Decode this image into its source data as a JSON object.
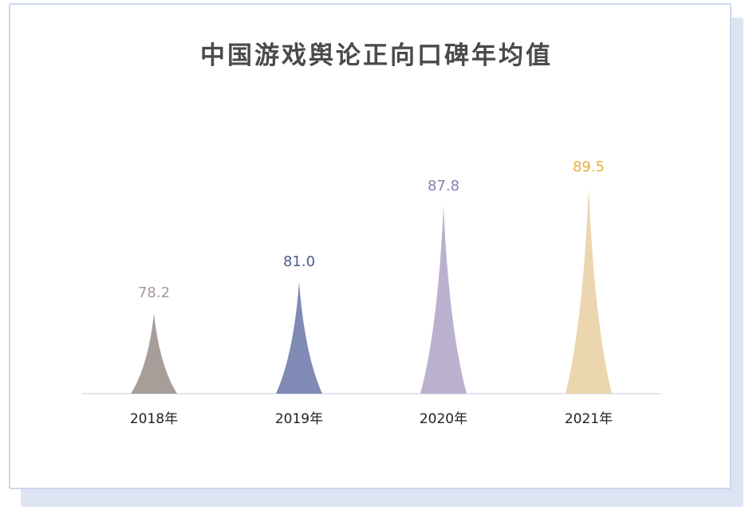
{
  "chart_data": {
    "type": "bar",
    "title": "中国游戏舆论正向口碑年均值",
    "categories": [
      "2018年",
      "2019年",
      "2020年",
      "2021年"
    ],
    "values": [
      78.2,
      81.0,
      87.8,
      89.5
    ],
    "value_labels": [
      "78.2",
      "81.0",
      "87.8",
      "89.5"
    ],
    "colors": [
      "#a79e99",
      "#7f8ab5",
      "#bbb1cf",
      "#ecd6b0"
    ],
    "label_colors": [
      "#a59a95",
      "#4f5b93",
      "#8a80b2",
      "#e9b03c"
    ],
    "grid": false,
    "legend": "none"
  }
}
